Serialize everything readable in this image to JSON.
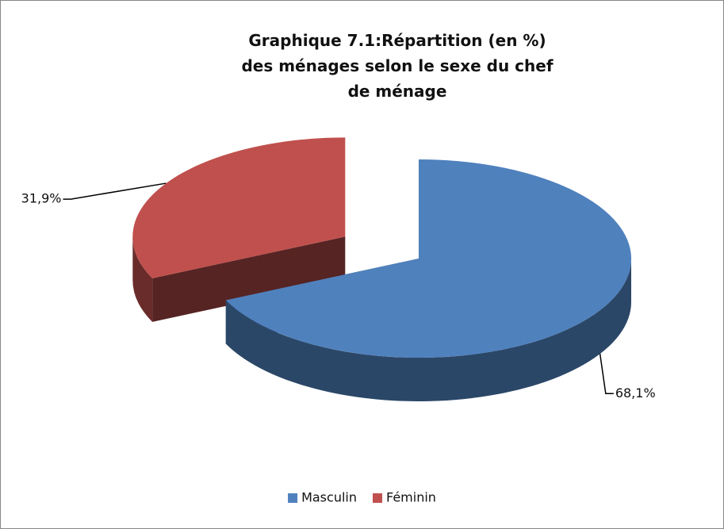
{
  "chart_data": {
    "type": "pie",
    "title": "Graphique 7.1:Répartition (en %) des ménages selon le sexe du chef de ménage",
    "categories": [
      "Masculin",
      "Féminin"
    ],
    "values": [
      68.1,
      31.9
    ],
    "value_labels": [
      "68,1%",
      "31,9%"
    ],
    "colors": [
      "#4f81bd",
      "#c0504d"
    ],
    "legend": "bottom"
  }
}
